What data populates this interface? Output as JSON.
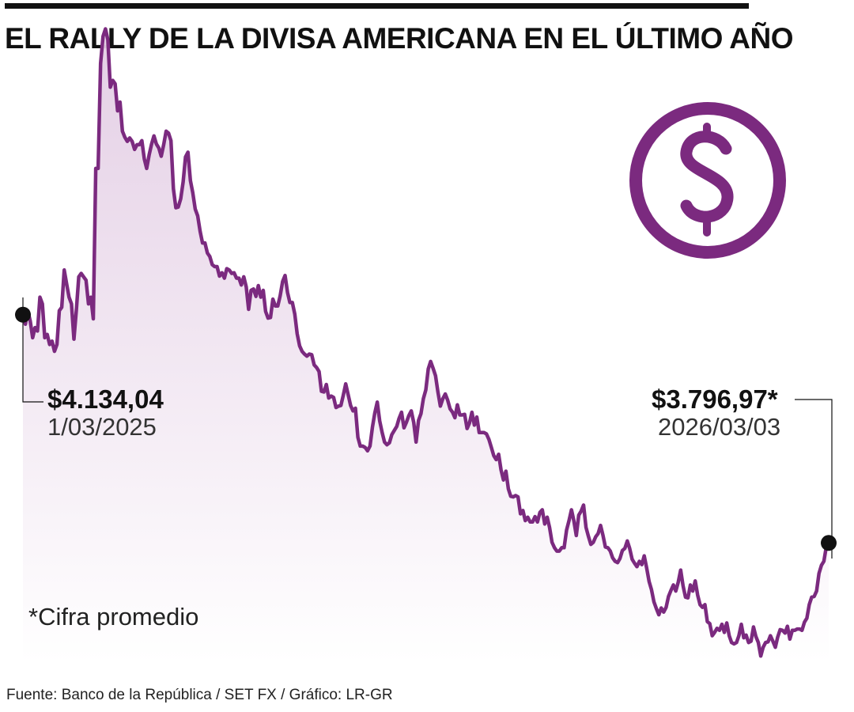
{
  "header": {
    "title": "EL RALLY DE LA DIVISA AMERICANA EN EL ÚLTIMO AÑO"
  },
  "annotations": {
    "start": {
      "value": "$4.134,04",
      "date": "1/03/2025"
    },
    "end": {
      "value": "$3.796,97*",
      "date": "2026/03/03"
    }
  },
  "footnote": "*Cifra promedio",
  "source": "Fuente: Banco de la República / SET FX / Gráfico: LR-GR",
  "icon": {
    "name": "dollar-coin-icon",
    "color": "#7b2a7f"
  },
  "colors": {
    "line": "#7b2a7f",
    "fill_top": "#e3cde4",
    "fill_bottom": "#ffffff",
    "marker": "#111111"
  },
  "chart_data": {
    "type": "line",
    "title": "EL RALLY DE LA DIVISA AMERICANA EN EL ÚLTIMO AÑO",
    "x_start": "2025-03-01",
    "x_end": "2026-03-03",
    "ylim": [
      3600,
      4580
    ],
    "grid": false,
    "series": [
      {
        "values": [
          4134,
          4120,
          4140,
          4125,
          4100,
          4115,
          4110,
          4160,
          4150,
          4100,
          4105,
          4090,
          4095,
          4080,
          4090,
          4140,
          4145,
          4200,
          4180,
          4160,
          4150,
          4098,
          4140,
          4190,
          4195,
          4190,
          4185,
          4150,
          4160,
          4128,
          4350,
          4350,
          4505,
          4545,
          4556,
          4540,
          4470,
          4480,
          4475,
          4435,
          4448,
          4405,
          4396,
          4390,
          4395,
          4390,
          4378,
          4385,
          4385,
          4391,
          4364,
          4350,
          4370,
          4386,
          4398,
          4386,
          4380,
          4368,
          4385,
          4405,
          4402,
          4391,
          4320,
          4292,
          4293,
          4305,
          4330,
          4367,
          4374,
          4332,
          4314,
          4290,
          4280,
          4257,
          4240,
          4240,
          4225,
          4220,
          4208,
          4205,
          4205,
          4191,
          4196,
          4188,
          4202,
          4200,
          4195,
          4196,
          4188,
          4188,
          4178,
          4190,
          4175,
          4142,
          4170,
          4172,
          4161,
          4177,
          4160,
          4170,
          4139,
          4129,
          4130,
          4157,
          4147,
          4147,
          4162,
          4183,
          4192,
          4167,
          4152,
          4152,
          4135,
          4106,
          4088,
          4080,
          4076,
          4073,
          4076,
          4075,
          4060,
          4056,
          4050,
          4021,
          4020,
          4031,
          4011,
          4014,
          4012,
          3997,
          3999,
          4000,
          4015,
          4032,
          4016,
          4000,
          3992,
          3996,
          3953,
          3940,
          3940,
          3938,
          3933,
          3940,
          3968,
          3989,
          4005,
          3977,
          3960,
          3946,
          3942,
          3945,
          3957,
          3963,
          3969,
          3981,
          3990,
          3967,
          3975,
          3985,
          3992,
          3975,
          3946,
          3978,
          3988,
          4010,
          4023,
          4054,
          4065,
          4055,
          4044,
          4020,
          3999,
          4010,
          4017,
          4008,
          3995,
          3990,
          3982,
          4001,
          3986,
          3986,
          3987,
          3966,
          3974,
          3990,
          3971,
          3983,
          3960,
          3960,
          3960,
          3958,
          3950,
          3938,
          3926,
          3920,
          3928,
          3905,
          3890,
          3903,
          3877,
          3866,
          3865,
          3867,
          3865,
          3840,
          3845,
          3830,
          3835,
          3828,
          3828,
          3836,
          3828,
          3842,
          3846,
          3825,
          3835,
          3820,
          3798,
          3790,
          3785,
          3785,
          3790,
          3790,
          3816,
          3830,
          3846,
          3830,
          3808,
          3838,
          3844,
          3853,
          3820,
          3807,
          3795,
          3798,
          3806,
          3811,
          3823,
          3808,
          3791,
          3790,
          3785,
          3775,
          3770,
          3768,
          3774,
          3786,
          3789,
          3800,
          3789,
          3773,
          3767,
          3762,
          3770,
          3765,
          3778,
          3760,
          3740,
          3728,
          3710,
          3700,
          3691,
          3701,
          3695,
          3702,
          3718,
          3727,
          3735,
          3726,
          3739,
          3757,
          3734,
          3717,
          3716,
          3735,
          3726,
          3741,
          3720,
          3706,
          3702,
          3706,
          3681,
          3678,
          3660,
          3665,
          3671,
          3668,
          3677,
          3665,
          3679,
          3660,
          3650,
          3648,
          3650,
          3660,
          3677,
          3657,
          3661,
          3650,
          3652,
          3673,
          3659,
          3650,
          3630,
          3643,
          3650,
          3651,
          3660,
          3652,
          3643,
          3658,
          3669,
          3668,
          3664,
          3674,
          3655,
          3668,
          3668,
          3670,
          3670,
          3668,
          3680,
          3686,
          3706,
          3717,
          3718,
          3726,
          3752,
          3764,
          3770,
          3791,
          3797
        ]
      }
    ]
  }
}
